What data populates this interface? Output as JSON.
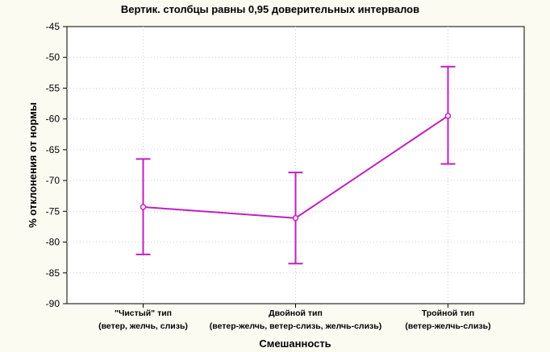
{
  "chart_data": {
    "type": "line",
    "title": "Вертик. столбцы равны 0,95 доверительных интервалов",
    "xlabel": "Смешанность",
    "ylabel": "% отклонения от нормы",
    "categories": [
      [
        "\"Чистый\" тип",
        "(ветер, желчь, слизь)"
      ],
      [
        "Двойной тип",
        "(ветер-желчь, ветер-слизь, желчь-слизь)"
      ],
      [
        "Тройной тип",
        "(ветер-желчь-слизь)"
      ]
    ],
    "ylim": [
      -90,
      -45
    ],
    "yticks": [
      -45,
      -50,
      -55,
      -60,
      -65,
      -70,
      -75,
      -80,
      -85,
      -90
    ],
    "grid": true,
    "series": [
      {
        "values": [
          -74.3,
          -76.1,
          -59.5
        ],
        "ci_upper": [
          -66.5,
          -68.7,
          -51.5
        ],
        "ci_lower": [
          -82.0,
          -83.5,
          -67.3
        ],
        "color": "#c020c0"
      }
    ]
  }
}
